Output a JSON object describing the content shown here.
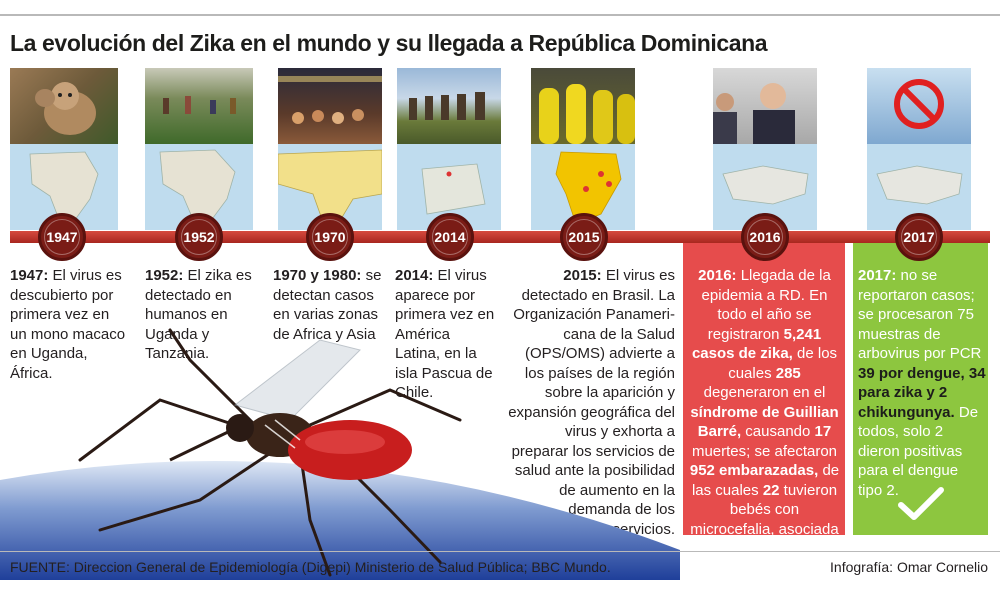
{
  "title": "La evolución del Zika en el mundo y su llegada a República Dominicana",
  "years": [
    "1947",
    "1952",
    "1970",
    "2014",
    "2015",
    "2016",
    "2017"
  ],
  "events": [
    {
      "year_label": "1947:",
      "text": "El virus es descubierto por primera vez en un mono macaco en Uganda, África."
    },
    {
      "year_label": "1952:",
      "text": "El zika es detectado en humanos en Uganda y Tanzania."
    },
    {
      "year_label": "1970 y 1980:",
      "text": "se detectan casos en varias zonas de Africa y Asia"
    },
    {
      "year_label": "2014:",
      "text": "El virus aparece por primera vez en América Latina, en la isla Pascua de Chile."
    },
    {
      "year_label": "2015:",
      "text": "El virus es detectado en Brasil. La Organización Panameri-cana de la Salud (OPS/OMS)  advierte a los países de la región sobre la aparición y expansión geográfica del virus y exhorta a preparar los servicios de salud ante la posibilidad de aumento en la demanda de los servicios."
    }
  ],
  "event_2016": {
    "year_label": "2016:",
    "t1": "Llegada de la epidemia a RD. En todo el año se registraron",
    "b1": "5,241 casos de zika,",
    "t2": "de los cuales",
    "b2": "285",
    "t3": "degeneraron en el",
    "b3": "síndrome de Guillian Barré,",
    "t4": "causando",
    "b4": "17",
    "t5": "muertes; se afectaron",
    "b5": "952 embarazadas,",
    "t6": "de las cuales",
    "b6": "22",
    "t7": "tuvieron bebés con microcefalia, asociada al virus."
  },
  "event_2017": {
    "year_label": "2017:",
    "t1": "no se reportaron casos; se procesaron 75 muestras de arbovirus por PCR",
    "b1": "39 por dengue, 34 para zika y 2 chikungunya.",
    "t2": "De todos, solo 2 dieron positivas para el dengue tipo 2."
  },
  "footer": {
    "source": "FUENTE: Direccion General de Epidemiología (Digepi) Ministerio de Salud Pública; BBC Mundo.",
    "credit": "Infografía: Omar Cornelio"
  },
  "colors": {
    "timeline": "#b2271e",
    "box_2016": "#e64c4c",
    "box_2017": "#8dc63f",
    "badge": "#7a1c16"
  },
  "icons": [
    "monkey-photo",
    "field-workers-photo",
    "crowd-photo",
    "moai-photo",
    "hazmat-workers-photo",
    "press-conference-photo",
    "no-mosquito-sign-photo",
    "mosquito-illustration",
    "checkmark-icon"
  ]
}
